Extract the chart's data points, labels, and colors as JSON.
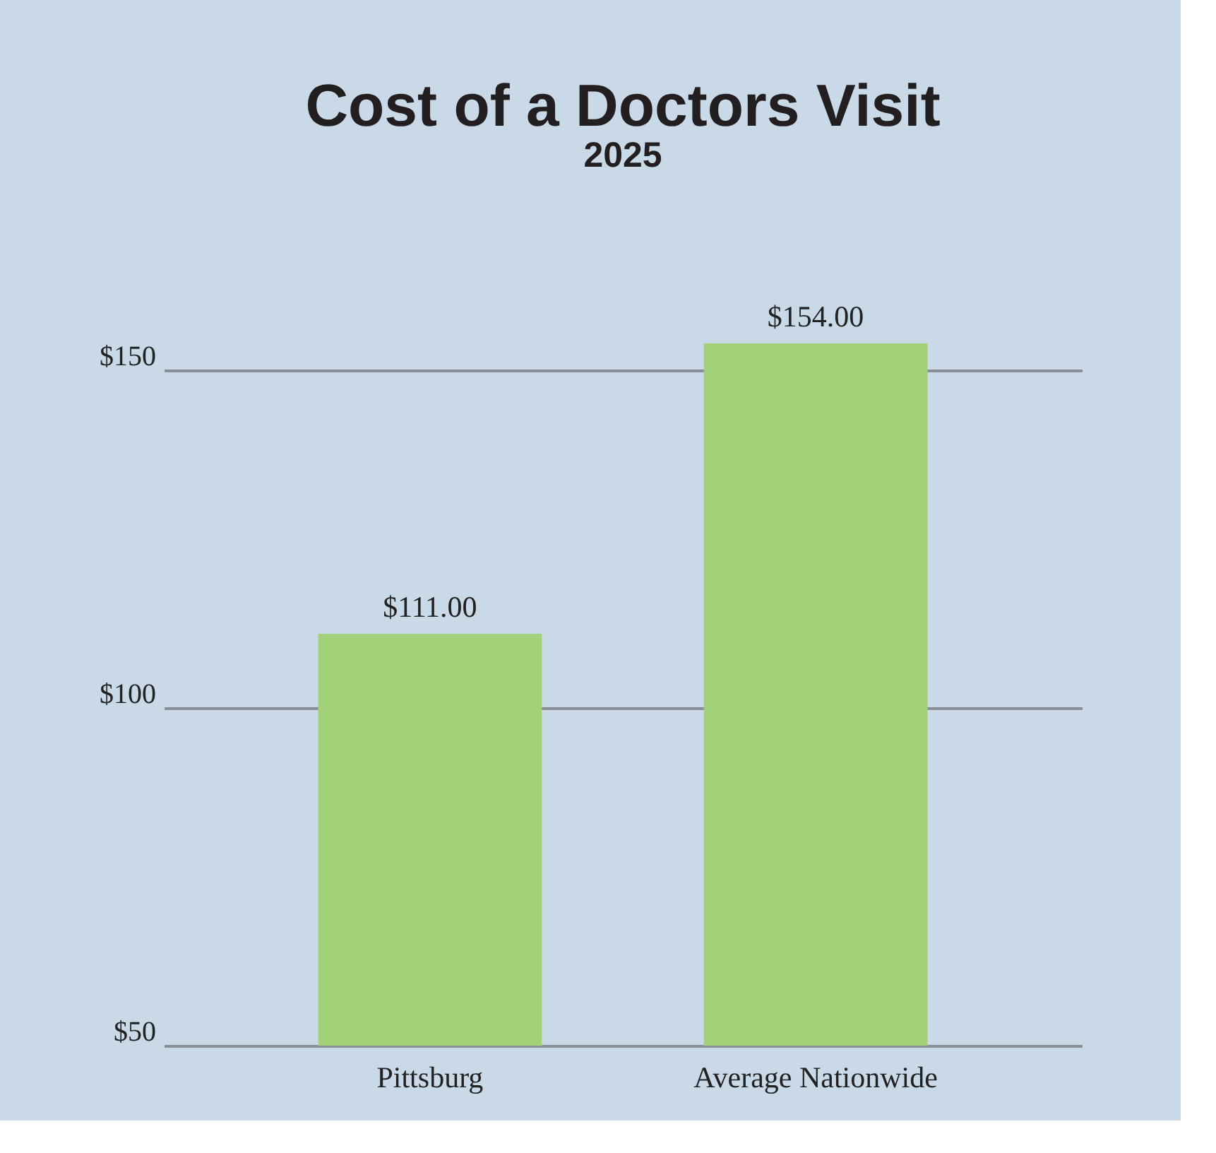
{
  "chart_data": {
    "type": "bar",
    "title": "Cost of a Doctors Visit",
    "subtitle": "2025",
    "categories": [
      "Pittsburg",
      "Average Nationwide"
    ],
    "values": [
      111,
      154
    ],
    "value_labels": [
      "$111.00",
      "$154.00"
    ],
    "color": "#a3d17a",
    "ylim": [
      50,
      154
    ],
    "yticks": [
      {
        "value": 50,
        "label": "$50"
      },
      {
        "value": 100,
        "label": "$100"
      },
      {
        "value": 150,
        "label": "$150"
      }
    ],
    "grid": "y"
  }
}
